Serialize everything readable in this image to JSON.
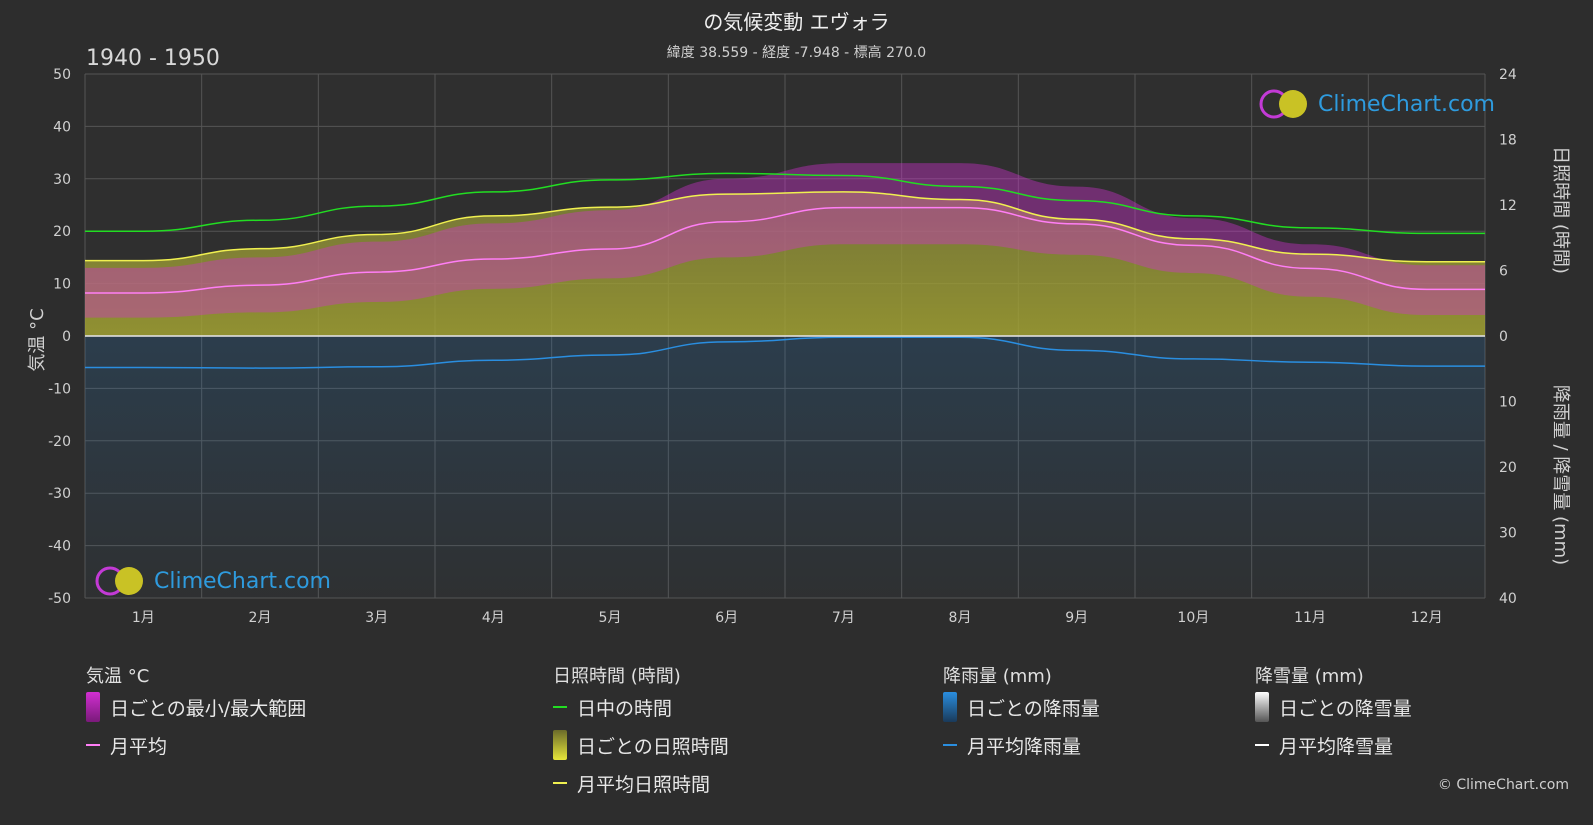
{
  "title": "の気候変動 エヴォラ",
  "subtitle": "緯度 38.559 - 経度 -7.948 - 標高 270.0",
  "period": "1940 - 1950",
  "brand": "ClimeChart.com",
  "copyright": "© ClimeChart.com",
  "axes": {
    "left_title": "気温 °C",
    "right_top_title": "日照時間 (時間)",
    "right_bottom_title": "降雨量 / 降雪量 (mm)"
  },
  "legend": {
    "temp": {
      "header": "気温 °C",
      "range": "日ごとの最小/最大範囲",
      "avg": "月平均"
    },
    "sun": {
      "header": "日照時間 (時間)",
      "daylight": "日中の時間",
      "daily": "日ごとの日照時間",
      "avg": "月平均日照時間"
    },
    "rain": {
      "header": "降雨量 (mm)",
      "daily": "日ごとの降雨量",
      "avg": "月平均降雨量"
    },
    "snow": {
      "header": "降雪量 (mm)",
      "daily": "日ごとの降雪量",
      "avg": "月平均降雪量"
    }
  },
  "colors": {
    "background": "#2d2d2d",
    "grid": "#555555",
    "temp_range": "#d22fd2",
    "temp_avg": "#ff7ef5",
    "daylight": "#22dd22",
    "sunshine_fill": "#9a9a2a",
    "sunshine_avg": "#f0f050",
    "rain": "#1e7ac8",
    "rain_avg": "#2a8ee0",
    "snow": "#ffffff"
  },
  "chart_data": {
    "type": "area",
    "categories": [
      "1月",
      "2月",
      "3月",
      "4月",
      "5月",
      "6月",
      "7月",
      "8月",
      "9月",
      "10月",
      "11月",
      "12月"
    ],
    "left_axis": {
      "label": "気温 °C",
      "min": -50,
      "max": 50,
      "ticks": [
        50,
        40,
        30,
        20,
        10,
        0,
        -10,
        -20,
        -30,
        -40,
        -50
      ]
    },
    "right_axis_sun": {
      "label": "日照時間 (時間)",
      "min": 0,
      "max": 24,
      "ticks": [
        24,
        18,
        12,
        6,
        0
      ]
    },
    "right_axis_precip": {
      "label": "降雨量 / 降雪量 (mm)",
      "min": 0,
      "max": 40,
      "ticks": [
        0,
        10,
        20,
        30,
        40
      ]
    },
    "series": [
      {
        "name": "日中の時間",
        "axis": "sun",
        "values": [
          9.6,
          10.6,
          11.9,
          13.2,
          14.3,
          14.9,
          14.7,
          13.7,
          12.4,
          11.0,
          9.9,
          9.4
        ]
      },
      {
        "name": "月平均日照時間",
        "axis": "sun",
        "values": [
          6.9,
          8.0,
          9.3,
          11.0,
          11.8,
          13.0,
          13.2,
          12.5,
          10.7,
          8.9,
          7.5,
          6.8
        ]
      },
      {
        "name": "月平均",
        "axis": "temp",
        "values": [
          8.2,
          9.7,
          12.2,
          14.7,
          16.6,
          21.8,
          24.5,
          24.5,
          21.4,
          17.3,
          12.9,
          8.9
        ]
      },
      {
        "name": "日ごとの最小/最大範囲 (最小)",
        "axis": "temp",
        "values": [
          3.5,
          4.5,
          6.5,
          9.0,
          11.0,
          15.0,
          17.5,
          17.5,
          15.5,
          12.0,
          7.5,
          4.0
        ]
      },
      {
        "name": "日ごとの最小/最大範囲 (最大)",
        "axis": "temp",
        "values": [
          13.0,
          15.0,
          18.0,
          21.5,
          24.0,
          30.0,
          33.0,
          33.0,
          28.5,
          22.5,
          17.5,
          13.5
        ]
      },
      {
        "name": "月平均降雨量",
        "axis": "precip",
        "values": [
          4.8,
          4.9,
          4.7,
          3.7,
          2.9,
          0.9,
          0.2,
          0.2,
          2.2,
          3.5,
          4.0,
          4.6
        ]
      },
      {
        "name": "月平均降雪量",
        "axis": "precip",
        "values": [
          0,
          0,
          0,
          0,
          0,
          0,
          0,
          0,
          0,
          0,
          0,
          0
        ]
      }
    ]
  }
}
